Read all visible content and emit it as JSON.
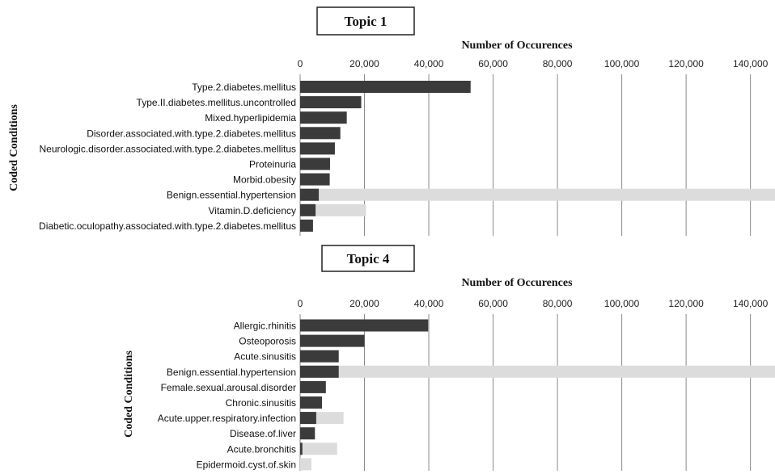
{
  "chart_data": [
    {
      "type": "bar",
      "orientation": "horizontal",
      "title": "Topic 1",
      "xlabel": "Number of Occurences",
      "ylabel": "Coded Conditions",
      "xlim": [
        0,
        148000
      ],
      "xticks": [
        "0",
        "20,000",
        "40,000",
        "60,000",
        "80,000",
        "100,000",
        "120,000",
        "140,000"
      ],
      "xtick_values": [
        0,
        20000,
        40000,
        60000,
        80000,
        100000,
        120000,
        140000
      ],
      "grid": true,
      "axis_position": "top",
      "categories": [
        "Type.2.diabetes.mellitus",
        "Type.II.diabetes.mellitus.uncontrolled",
        "Mixed.hyperlipidemia",
        "Disorder.associated.with.type.2.diabetes.mellitus",
        "Neurologic.disorder.associated.with.type.2.diabetes.mellitus",
        "Proteinuria",
        "Morbid.obesity",
        "Benign.essential.hypertension",
        "Vitamin.D.deficiency",
        "Diabetic.oculopathy.associated.with.type.2.diabetes.mellitus"
      ],
      "series": [
        {
          "values": [
            53000,
            19000,
            14500,
            12500,
            10800,
            9300,
            9200,
            5800,
            4800,
            4000
          ],
          "color": "#3b3b3b"
        },
        {
          "values": [
            0,
            0,
            0,
            0,
            0,
            0,
            0,
            150000,
            20500,
            0
          ],
          "color": "#dcdcdc"
        }
      ]
    },
    {
      "type": "bar",
      "orientation": "horizontal",
      "title": "Topic 4",
      "xlabel": "Number of Occurences",
      "ylabel": "Coded Conditions",
      "xlim": [
        0,
        148000
      ],
      "xticks": [
        "0",
        "20,000",
        "40,000",
        "60,000",
        "80,000",
        "100,000",
        "120,000",
        "140,000"
      ],
      "xtick_values": [
        0,
        20000,
        40000,
        60000,
        80000,
        100000,
        120000,
        140000
      ],
      "grid": true,
      "axis_position": "top",
      "categories": [
        "Allergic.rhinitis",
        "Osteoporosis",
        "Acute.sinusitis",
        "Benign.essential.hypertension",
        "Female.sexual.arousal.disorder",
        "Chronic.sinusitis",
        "Acute.upper.respiratory.infection",
        "Disease.of.liver",
        "Acute.bronchitis",
        "Epidermoid.cyst.of.skin"
      ],
      "series": [
        {
          "values": [
            39800,
            20000,
            12000,
            12000,
            8000,
            6800,
            5000,
            4600,
            700,
            0
          ],
          "color": "#3b3b3b"
        },
        {
          "values": [
            0,
            0,
            0,
            150000,
            0,
            0,
            13500,
            0,
            11500,
            3500
          ],
          "color": "#dcdcdc"
        }
      ]
    }
  ]
}
